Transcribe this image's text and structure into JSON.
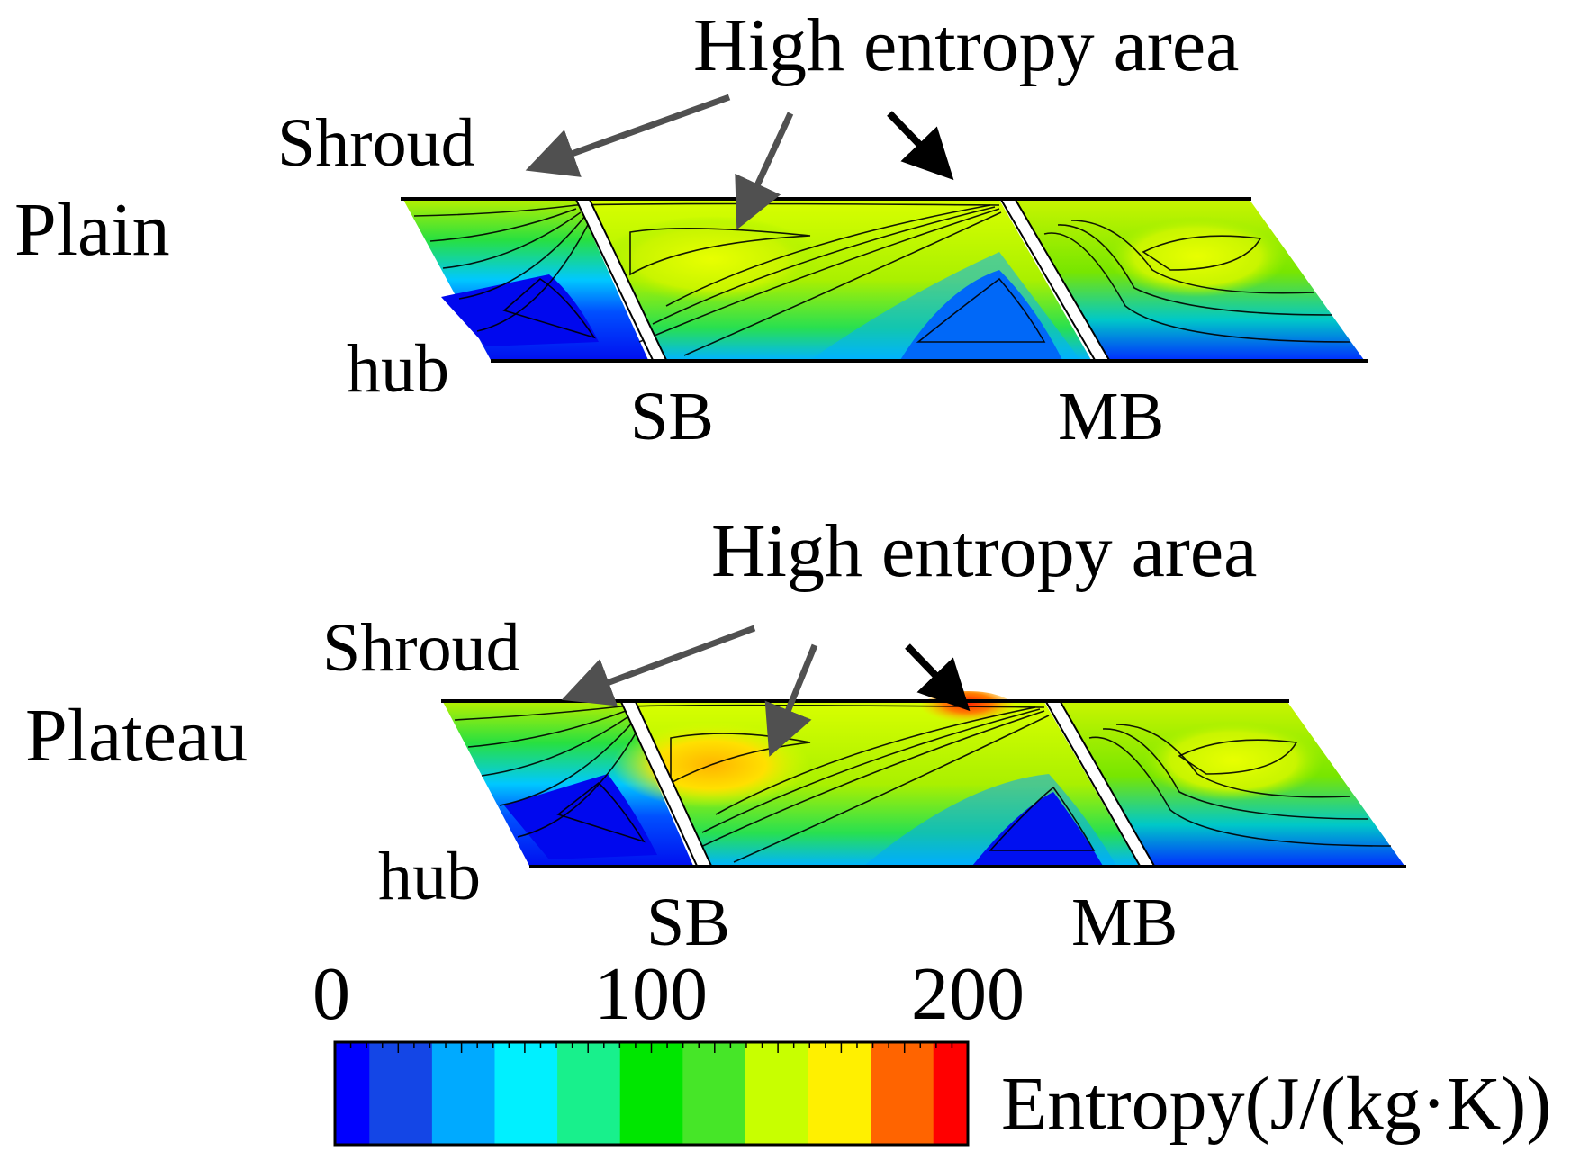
{
  "panels": [
    {
      "label": "Plain",
      "annotation": "High entropy area",
      "shroud_label": "Shroud",
      "hub_label": "hub",
      "blade_labels": [
        "SB",
        "MB"
      ]
    },
    {
      "label": "Plateau",
      "annotation": "High entropy area",
      "shroud_label": "Shroud",
      "hub_label": "hub",
      "blade_labels": [
        "SB",
        "MB"
      ]
    }
  ],
  "colorbar": {
    "title": "Entropy(J/(kg·K))",
    "ticks": [
      "0",
      "100",
      "200"
    ],
    "min": 0,
    "max": 200,
    "colors": [
      "#0000ff",
      "#1446e6",
      "#00aaff",
      "#00f0ff",
      "#18f08c",
      "#00e600",
      "#46e628",
      "#c8ff00",
      "#fff000",
      "#ff6400",
      "#ff0000"
    ]
  }
}
